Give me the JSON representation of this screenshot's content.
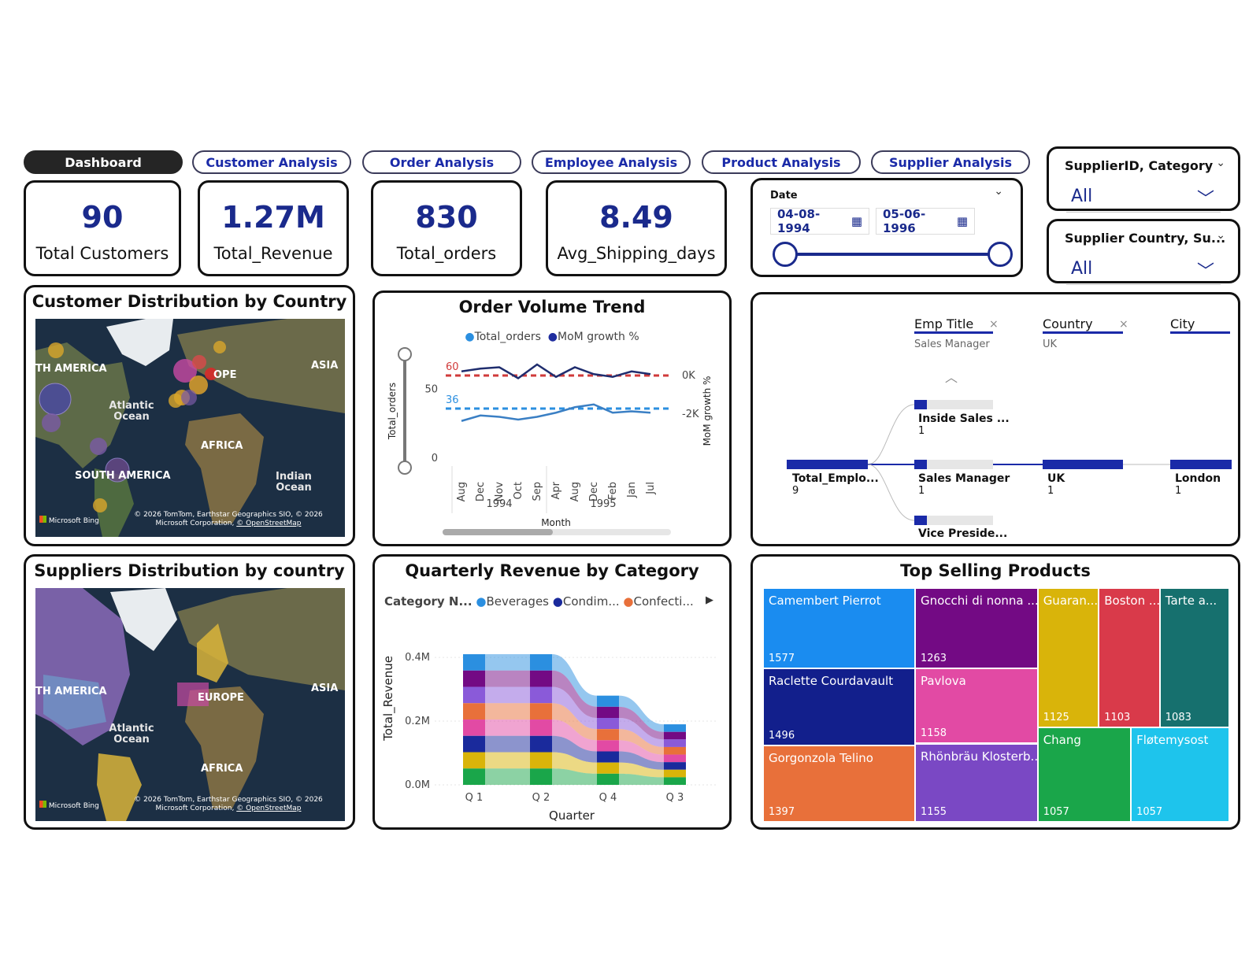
{
  "nav": [
    {
      "label": "Dashboard",
      "active": true
    },
    {
      "label": "Customer Analysis"
    },
    {
      "label": "Order Analysis"
    },
    {
      "label": "Employee Analysis"
    },
    {
      "label": "Product Analysis"
    },
    {
      "label": "Supplier Analysis"
    }
  ],
  "kpis": [
    {
      "value": "90",
      "label": "Total Customers"
    },
    {
      "value": "1.27M",
      "label": "Total_Revenue"
    },
    {
      "value": "830",
      "label": "Total_orders"
    },
    {
      "value": "8.49",
      "label": "Avg_Shipping_days"
    }
  ],
  "date_slicer": {
    "title": "Date",
    "start": "04-08-1994",
    "end": "05-06-1996"
  },
  "slicers": [
    {
      "title": "SupplierID, Category",
      "value": "All"
    },
    {
      "title": "Supplier Country, Su...",
      "value": "All"
    }
  ],
  "customer_map": {
    "title": "Customer Distribution by Country",
    "labels": {
      "na": "TH AMERICA",
      "eu": "OPE",
      "asia": "ASIA",
      "ocean": "Atlantic Ocean",
      "africa": "AFRICA",
      "sa": "SOUTH AMERICA",
      "indian": "Indian Ocean"
    },
    "credit": "© 2026 TomTom, Earthstar Geographics SIO, © 2026 Microsoft Corporation,",
    "osm": "© OpenStreetMap",
    "bing": "Microsoft Bing"
  },
  "supplier_map": {
    "title": "Suppliers Distribution by country",
    "labels": {
      "na": "TH AMERICA",
      "eu": "EUROPE",
      "asia": "ASIA",
      "ocean": "Atlantic Ocean",
      "africa": "AFRICA"
    },
    "credit": "© 2026 TomTom, Earthstar Geographics SIO, © 2026 Microsoft Corporation,",
    "osm": "© OpenStreetMap",
    "bing": "Microsoft Bing"
  },
  "chart_data": [
    {
      "type": "line",
      "title": "Order Volume Trend",
      "xlabel": "Month",
      "ylabel": "Total_orders",
      "y2label": "MoM growth %",
      "categories": [
        "Aug",
        "Dec",
        "Nov",
        "Oct",
        "Sep",
        "Apr",
        "Aug",
        "Dec",
        "Feb",
        "Jan",
        "Jul"
      ],
      "years": [
        {
          "label": "1994",
          "from": 0,
          "to": 4
        },
        {
          "label": "1995",
          "from": 5,
          "to": 10
        }
      ],
      "yticks": [
        "0",
        "50"
      ],
      "y2ticks": [
        "0K",
        "-2K"
      ],
      "ylim": [
        0,
        80
      ],
      "series": [
        {
          "name": "Total_orders",
          "color": "#3a7fc4",
          "values": [
            27,
            31,
            30,
            28,
            30,
            33,
            37,
            39,
            33,
            34,
            33
          ]
        },
        {
          "name": "MoM growth %",
          "color": "#1f2d6e",
          "values": [
            63,
            65,
            66,
            58,
            68,
            59,
            66,
            61,
            59,
            63,
            61
          ]
        }
      ],
      "reference_lines": [
        {
          "label": "60",
          "value": 60,
          "color": "#d03a3a"
        },
        {
          "label": "36",
          "value": 36,
          "color": "#2b8fe0"
        }
      ]
    },
    {
      "type": "area",
      "title": "Quarterly Revenue by Category",
      "xlabel": "Quarter",
      "ylabel": "Total_Revenue",
      "legend_title": "Category N...",
      "legend": [
        {
          "name": "Beverages",
          "color": "#2b8fe0"
        },
        {
          "name": "Condim...",
          "color": "#1a2a9c"
        },
        {
          "name": "Confecti...",
          "color": "#e8703a"
        }
      ],
      "categories": [
        "Q 1",
        "Q 2",
        "Q 4",
        "Q 3"
      ],
      "yticks": [
        "0.0M",
        "0.2M",
        "0.4M"
      ],
      "ylim": [
        0,
        0.42
      ],
      "values": [
        0.41,
        0.41,
        0.28,
        0.19
      ]
    },
    {
      "type": "table",
      "title": "Top Selling Products",
      "items": [
        {
          "name": "Camembert Pierrot",
          "value": 1577,
          "color": "#1a8cf0"
        },
        {
          "name": "Gnocchi di nonna ...",
          "value": 1263,
          "color": "#730a84"
        },
        {
          "name": "Guaran...",
          "value": 1125,
          "color": "#d9b40a"
        },
        {
          "name": "Boston ...",
          "value": 1103,
          "color": "#d93a4a"
        },
        {
          "name": "Tarte a...",
          "value": 1083,
          "color": "#16706e"
        },
        {
          "name": "Raclette Courdavault",
          "value": 1496,
          "color": "#121f8c"
        },
        {
          "name": "Pavlova",
          "value": 1158,
          "color": "#e24aa4"
        },
        {
          "name": "Gorgonzola Telino",
          "value": 1397,
          "color": "#e8703a"
        },
        {
          "name": "Rhönbräu Klosterb...",
          "value": 1155,
          "color": "#7a48c4"
        },
        {
          "name": "Chang",
          "value": 1057,
          "color": "#1aa64a"
        },
        {
          "name": "Fløtemysost",
          "value": 1057,
          "color": "#1ec4ec"
        }
      ]
    }
  ],
  "decomp_tree": {
    "fields": [
      {
        "name": "Emp Title",
        "filter": "Sales Manager",
        "x": "×"
      },
      {
        "name": "Country",
        "filter": "UK",
        "x": "×"
      },
      {
        "name": "City"
      }
    ],
    "root": {
      "label": "Total_Emplo...",
      "value": "9"
    },
    "titles": [
      {
        "label": "Inside Sales ...",
        "value": "1"
      },
      {
        "label": "Sales Manager",
        "value": "1"
      },
      {
        "label": "Vice Preside..."
      }
    ],
    "country": {
      "label": "UK",
      "value": "1"
    },
    "city": {
      "label": "London",
      "value": "1"
    }
  }
}
